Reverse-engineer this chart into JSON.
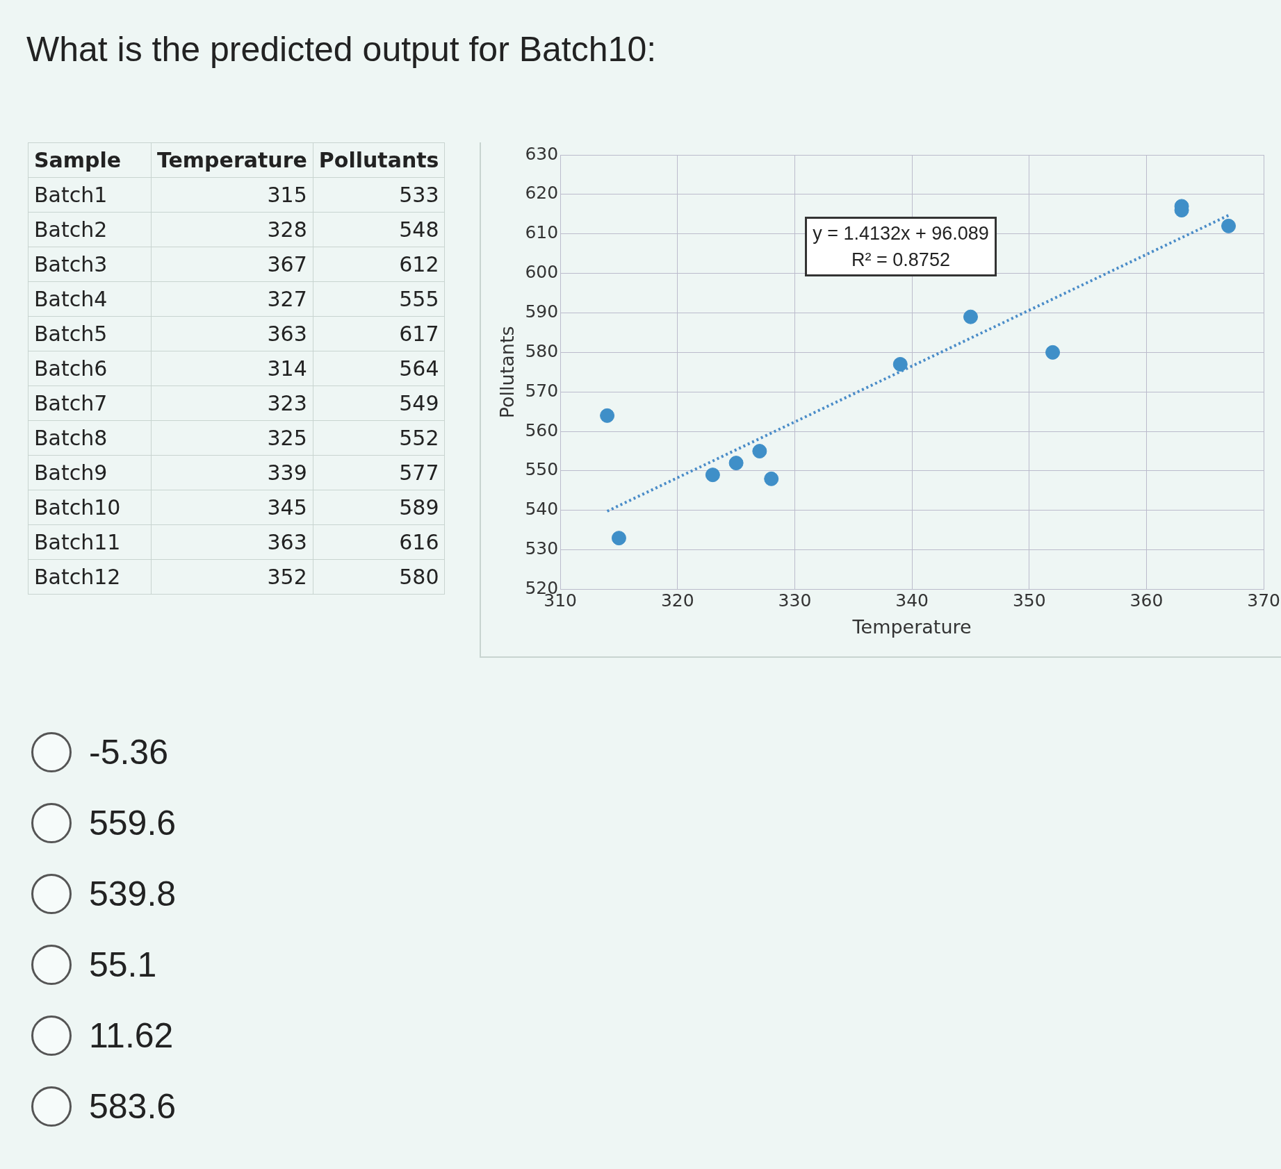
{
  "chart_data": {
    "type": "scatter",
    "title": "What is the predicted output for Batch10:",
    "xlabel": "Temperature",
    "ylabel": "Pollutants",
    "series": [
      {
        "type": "scatter",
        "color": "#3f8fc8",
        "marker": "circle",
        "x": [
          315,
          328,
          367,
          327,
          363,
          314,
          323,
          325,
          339,
          345,
          363,
          352
        ],
        "values": [
          533,
          548,
          612,
          555,
          617,
          564,
          549,
          552,
          577,
          589,
          616,
          580
        ]
      },
      {
        "type": "line",
        "color": "#4a8cc8",
        "line_style": "dotted",
        "marker": "none",
        "x": [
          314,
          367
        ],
        "values": [
          539.8,
          614.7
        ]
      }
    ],
    "xlim": [
      310,
      370
    ],
    "xticks": [
      310,
      320,
      330,
      340,
      350,
      360,
      370
    ],
    "ylim": [
      520,
      630
    ],
    "yticks": [
      520,
      530,
      540,
      550,
      560,
      570,
      580,
      590,
      600,
      610,
      620,
      630
    ],
    "grid": true,
    "legend": false,
    "annotations": [
      "Sample",
      "Batch1",
      "315",
      "533",
      "Batch2",
      "328",
      "548",
      "Batch3",
      "367",
      "612",
      "Batch4",
      "327",
      "555",
      "Batch5",
      "363",
      "617",
      "Batch6",
      "314",
      "564",
      "Batch7",
      "323",
      "549",
      "Batch8",
      "325",
      "552",
      "Batch9",
      "339",
      "577",
      "Batch10",
      "345",
      "589",
      "Batch11",
      "363",
      "616",
      "Batch12",
      "352",
      "580",
      "y = 1.4132x + 96.089",
      "R² = 0.8752",
      "-5.36",
      "559.6",
      "539.8",
      "55.1",
      "11.62",
      "583.6"
    ]
  }
}
